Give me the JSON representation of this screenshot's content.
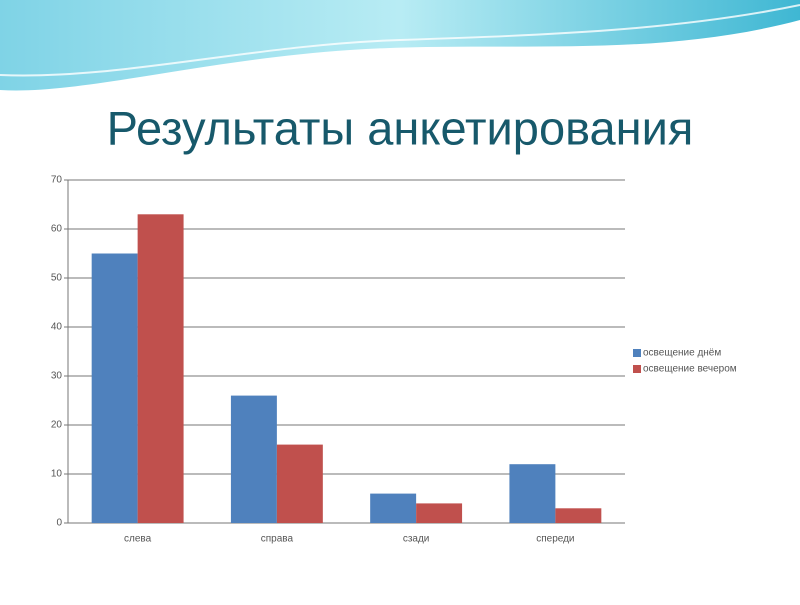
{
  "chart_data": {
    "type": "bar",
    "title": "Результаты анкетирования",
    "categories": [
      "слева",
      "справа",
      "сзади",
      "спереди"
    ],
    "series": [
      {
        "name": "освещение днём",
        "color": "#4f81bd",
        "values": [
          55,
          26,
          6,
          12
        ]
      },
      {
        "name": "освещение вечером",
        "color": "#c0504d",
        "values": [
          63,
          16,
          4,
          3
        ]
      }
    ],
    "ylim": [
      0,
      70
    ],
    "yticks": [
      0,
      10,
      20,
      30,
      40,
      50,
      60,
      70
    ],
    "grid": true,
    "legend": "right"
  }
}
